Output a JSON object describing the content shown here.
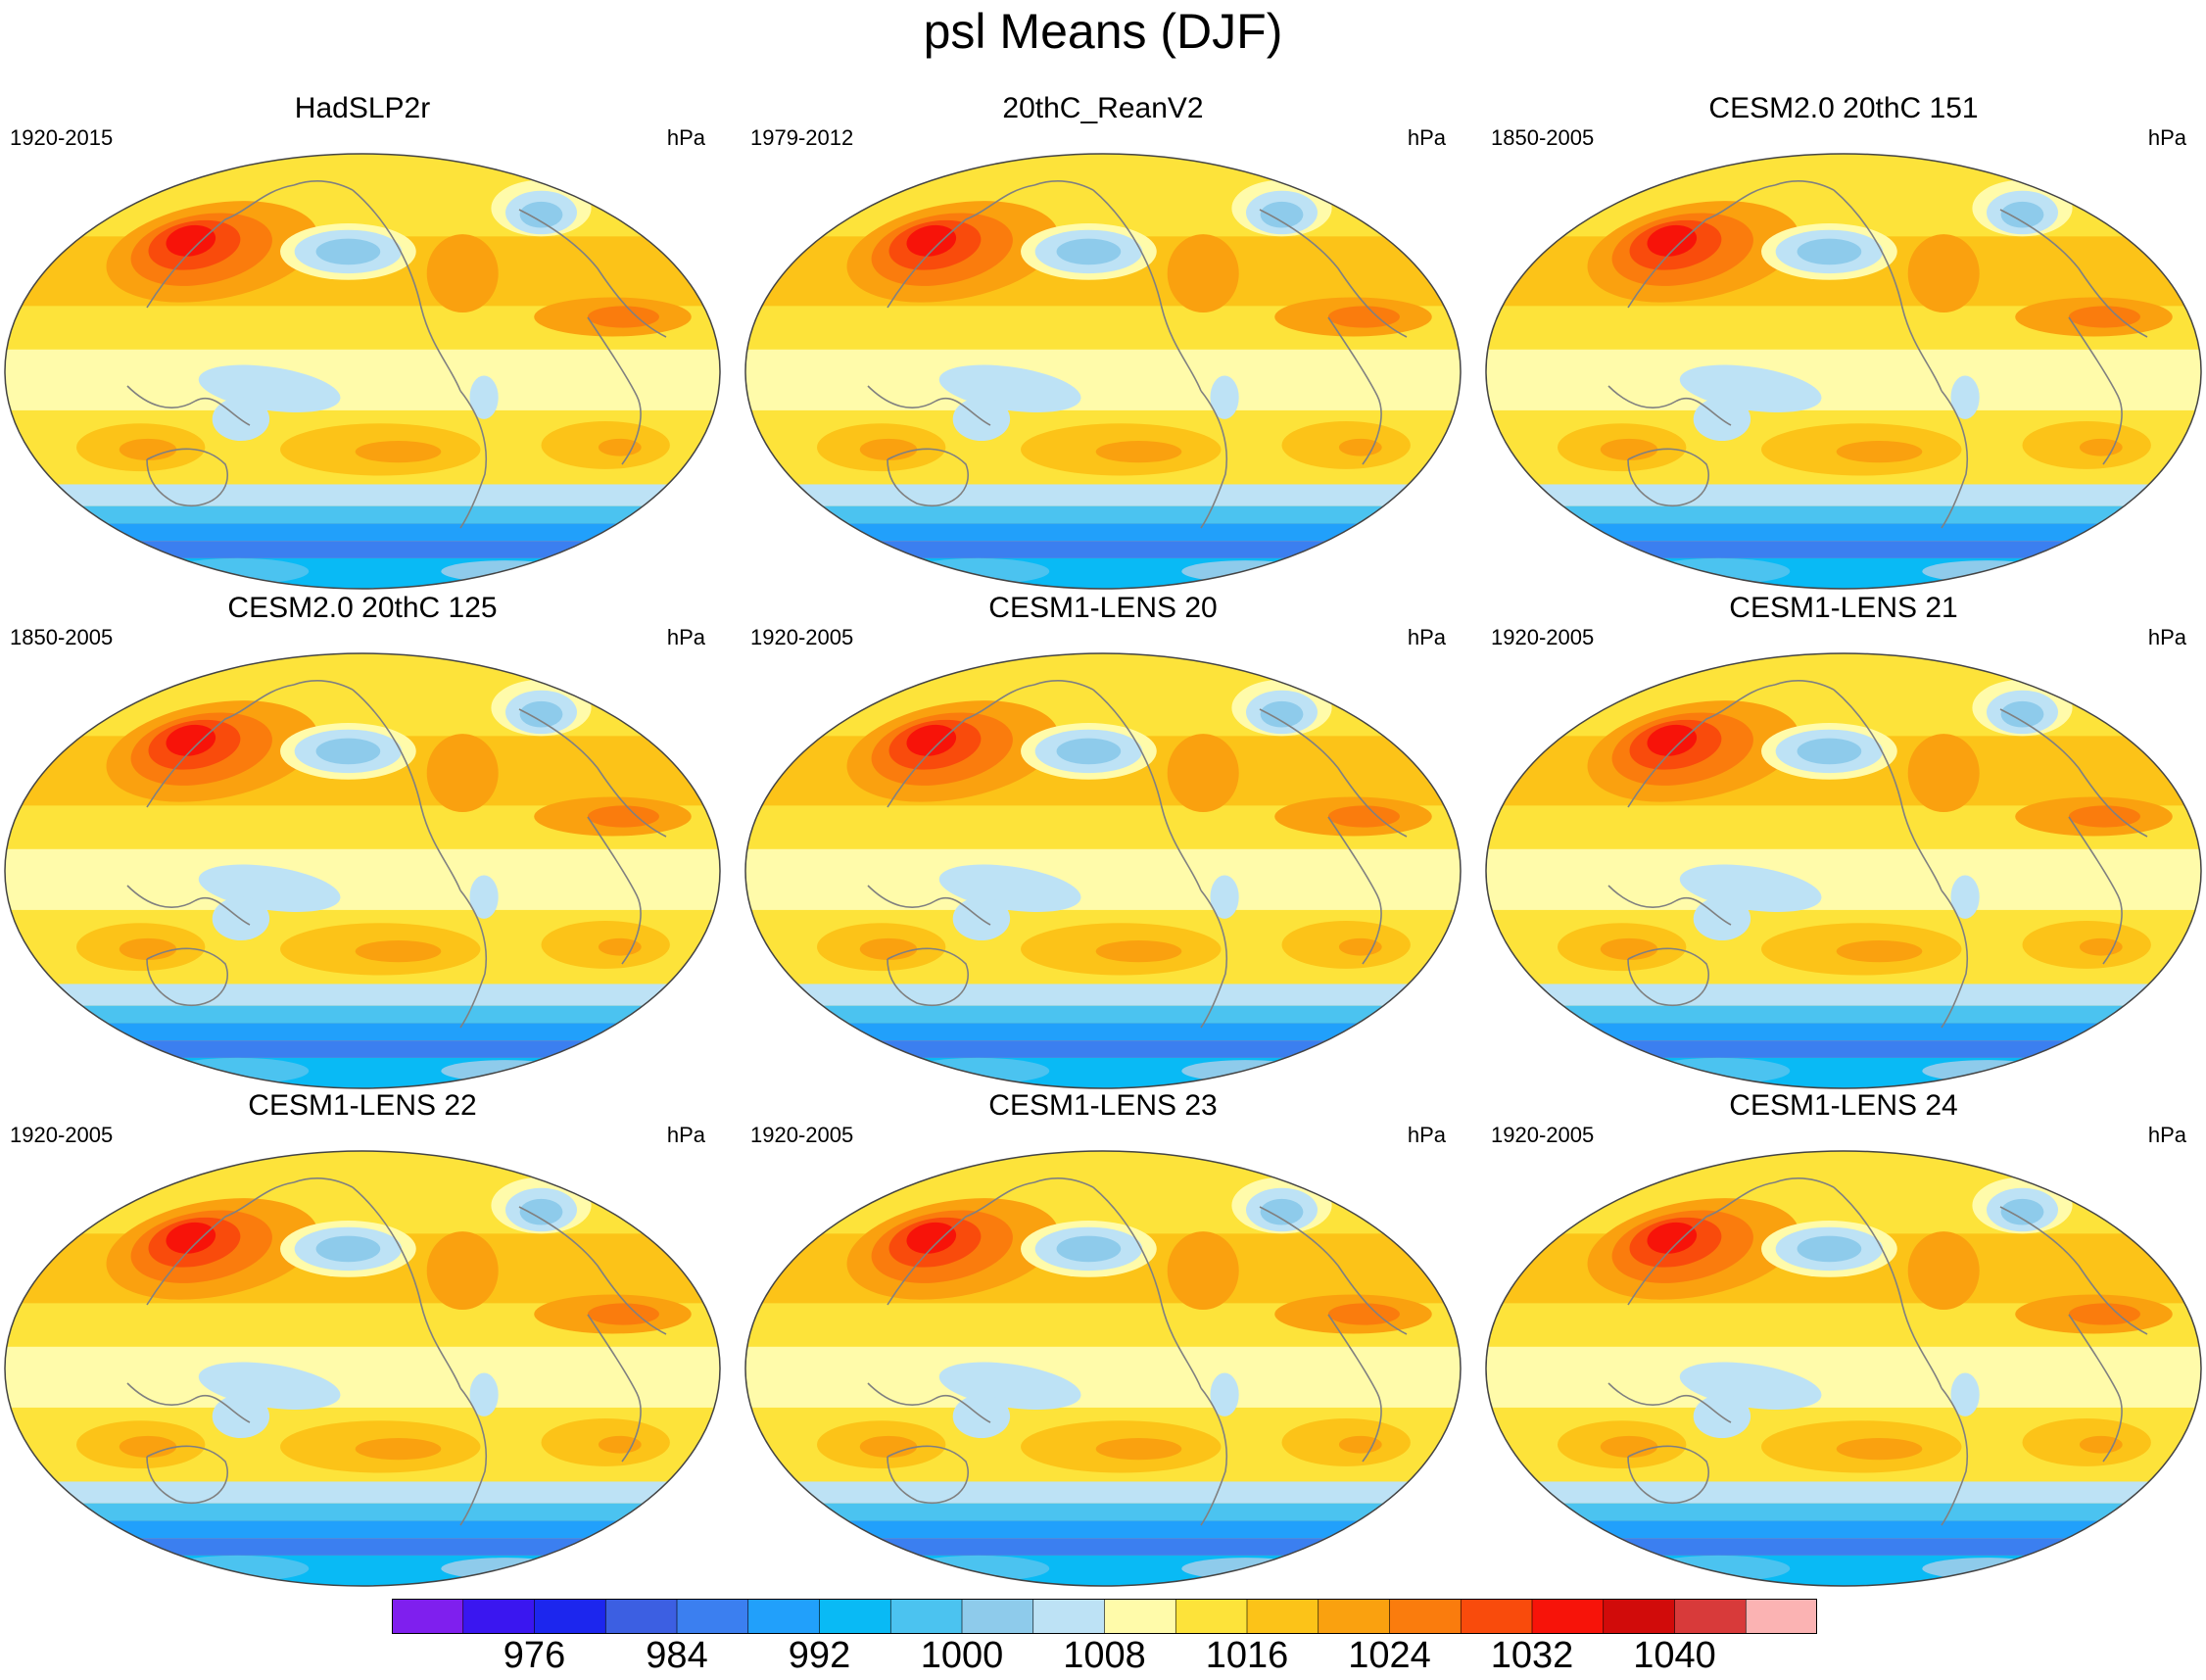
{
  "title": "psl Means (DJF)",
  "units_label": "hPa",
  "panels": [
    {
      "name": "HadSLP2r",
      "years": "1920-2015"
    },
    {
      "name": "20thC_ReanV2",
      "years": "1979-2012"
    },
    {
      "name": "CESM2.0 20thC 151",
      "years": "1850-2005"
    },
    {
      "name": "CESM2.0 20thC 125",
      "years": "1850-2005"
    },
    {
      "name": "CESM1-LENS 20",
      "years": "1920-2005"
    },
    {
      "name": "CESM1-LENS 21",
      "years": "1920-2005"
    },
    {
      "name": "CESM1-LENS 22",
      "years": "1920-2005"
    },
    {
      "name": "CESM1-LENS 23",
      "years": "1920-2005"
    },
    {
      "name": "CESM1-LENS 24",
      "years": "1920-2005"
    }
  ],
  "colorbar": {
    "colors": [
      "#7f1fee",
      "#3a16f0",
      "#1c26ee",
      "#3c5fe2",
      "#3b7ff0",
      "#21a0fb",
      "#09baf5",
      "#4bc3f0",
      "#8ecbeb",
      "#bde2f5",
      "#fffbaa",
      "#fde33a",
      "#fcc318",
      "#faa10f",
      "#fa7c0d",
      "#f94b0c",
      "#f71309",
      "#d10b0a",
      "#d83a3a",
      "#fbb3b3"
    ],
    "tick_labels": [
      "976",
      "984",
      "992",
      "1000",
      "1008",
      "1016",
      "1024",
      "1032",
      "1040"
    ]
  }
}
